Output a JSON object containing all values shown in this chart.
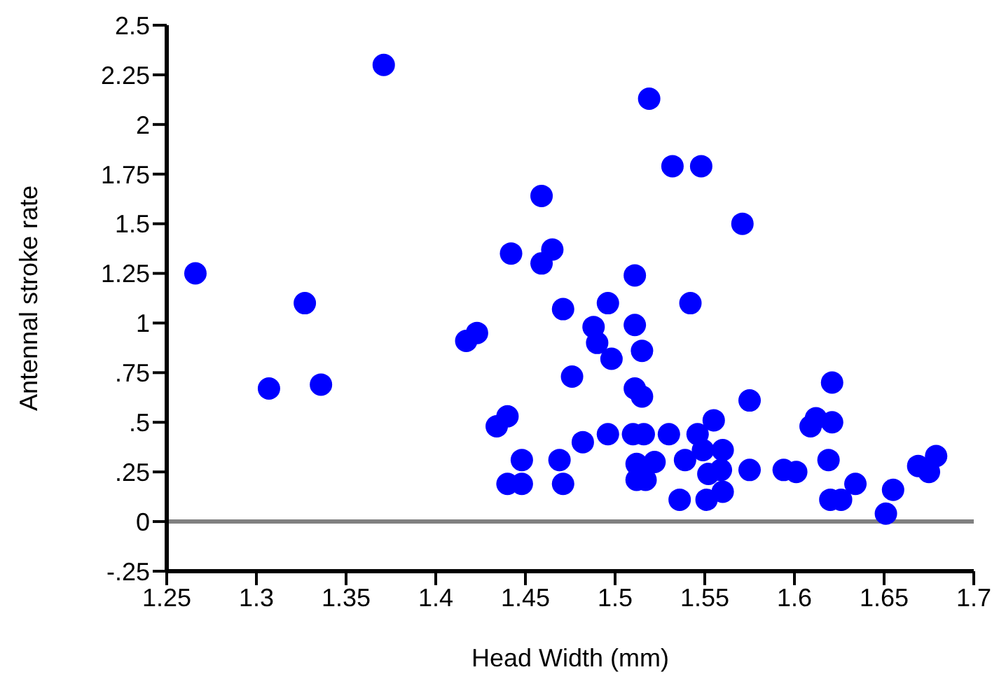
{
  "chart_data": {
    "type": "scatter",
    "xlabel": "Head Width (mm)",
    "ylabel": "Antennal stroke rate",
    "marker": "circle",
    "grid": false,
    "xlim": [
      1.25,
      1.7
    ],
    "xticks": [
      1.25,
      1.3,
      1.35,
      1.4,
      1.45,
      1.5,
      1.55,
      1.6,
      1.65,
      1.7
    ],
    "ylim": [
      -0.25,
      2.5
    ],
    "yticks": [
      {
        "value": -0.25,
        "label": "-.25"
      },
      0,
      {
        "value": 0.25,
        "label": ".25"
      },
      {
        "value": 0.5,
        "label": ".5"
      },
      {
        "value": 0.75,
        "label": ".75"
      },
      1,
      1.25,
      1.5,
      1.75,
      2,
      2.25,
      2.5
    ],
    "ref_lines": [
      {
        "axis": "y",
        "value": 0,
        "color": "#808080"
      }
    ],
    "series": [
      {
        "color": "#0000ff",
        "x": [
          1.266,
          1.371,
          1.327,
          1.307,
          1.336,
          1.417,
          1.423,
          1.434,
          1.44,
          1.44,
          1.448,
          1.448,
          1.459,
          1.442,
          1.459,
          1.465,
          1.471,
          1.469,
          1.471,
          1.476,
          1.482,
          1.488,
          1.49,
          1.496,
          1.498,
          1.496,
          1.519,
          1.511,
          1.511,
          1.515,
          1.511,
          1.515,
          1.51,
          1.516,
          1.512,
          1.512,
          1.517,
          1.522,
          1.53,
          1.532,
          1.548,
          1.542,
          1.536,
          1.539,
          1.546,
          1.549,
          1.552,
          1.551,
          1.555,
          1.56,
          1.559,
          1.56,
          1.571,
          1.575,
          1.575,
          1.594,
          1.601,
          1.609,
          1.612,
          1.621,
          1.621,
          1.619,
          1.62,
          1.626,
          1.634,
          1.651,
          1.655,
          1.669,
          1.675,
          1.679
        ],
        "values": [
          1.25,
          2.3,
          1.1,
          0.67,
          0.69,
          0.91,
          0.95,
          0.48,
          0.53,
          0.19,
          0.19,
          0.31,
          1.64,
          1.35,
          1.3,
          1.37,
          1.07,
          0.31,
          0.19,
          0.73,
          0.4,
          0.98,
          0.9,
          1.1,
          0.82,
          0.44,
          2.13,
          1.24,
          0.99,
          0.86,
          0.67,
          0.63,
          0.44,
          0.44,
          0.29,
          0.21,
          0.21,
          0.3,
          0.44,
          1.79,
          1.79,
          1.1,
          0.11,
          0.31,
          0.44,
          0.36,
          0.24,
          0.11,
          0.51,
          0.36,
          0.26,
          0.15,
          1.5,
          0.61,
          0.26,
          0.26,
          0.25,
          0.48,
          0.52,
          0.7,
          0.5,
          0.31,
          0.11,
          0.11,
          0.19,
          0.04,
          0.16,
          0.28,
          0.25,
          0.33
        ]
      }
    ]
  }
}
